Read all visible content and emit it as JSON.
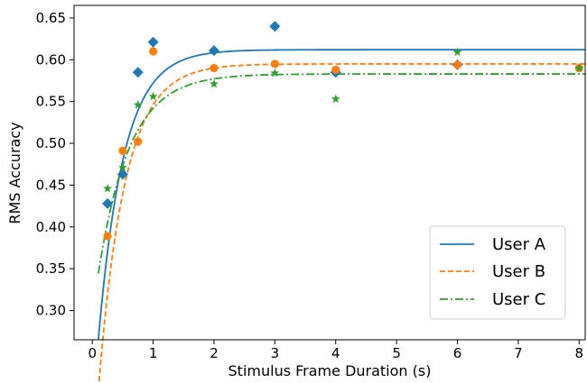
{
  "chart_data": {
    "type": "scatter",
    "title": "",
    "xlabel": "Stimulus Frame Duration (s)",
    "ylabel": "RMS Accuracy",
    "xlim": [
      -0.3,
      8.1
    ],
    "ylim": [
      0.265,
      0.665
    ],
    "xticks": [
      0,
      1,
      2,
      3,
      4,
      5,
      6,
      7,
      8
    ],
    "yticks": [
      0.3,
      0.35,
      0.4,
      0.45,
      0.5,
      0.55,
      0.6,
      0.65
    ],
    "grid": false,
    "legend": {
      "position": "bottom-right"
    },
    "series": [
      {
        "name": "User A",
        "color": "#1f77b4",
        "marker": "diamond",
        "line_style": "solid",
        "points": [
          [
            0.25,
            0.428
          ],
          [
            0.5,
            0.463
          ],
          [
            0.75,
            0.585
          ],
          [
            1,
            0.621
          ],
          [
            2,
            0.611
          ],
          [
            3,
            0.64
          ],
          [
            4,
            0.585
          ],
          [
            6,
            0.594
          ]
        ],
        "fit": {
          "a": 0.612,
          "b": 0.44,
          "k": 2.4
        }
      },
      {
        "name": "User B",
        "color": "#ff7f0e",
        "marker": "circle",
        "line_style": "dashed",
        "points": [
          [
            0.25,
            0.389
          ],
          [
            0.5,
            0.491
          ],
          [
            0.75,
            0.502
          ],
          [
            1,
            0.61
          ],
          [
            2,
            0.59
          ],
          [
            3,
            0.595
          ],
          [
            4,
            0.588
          ],
          [
            6,
            0.594
          ],
          [
            8,
            0.59
          ]
        ],
        "fit": {
          "a": 0.595,
          "b": 0.49,
          "k": 2.3
        }
      },
      {
        "name": "User C",
        "color": "#2ca02c",
        "marker": "star",
        "line_style": "dashdot",
        "points": [
          [
            0.25,
            0.446
          ],
          [
            0.5,
            0.471
          ],
          [
            0.75,
            0.546
          ],
          [
            1,
            0.556
          ],
          [
            2,
            0.571
          ],
          [
            3,
            0.584
          ],
          [
            4,
            0.553
          ],
          [
            6,
            0.609
          ],
          [
            8,
            0.59
          ]
        ],
        "fit": {
          "a": 0.583,
          "b": 0.29,
          "k": 1.95
        }
      }
    ]
  }
}
